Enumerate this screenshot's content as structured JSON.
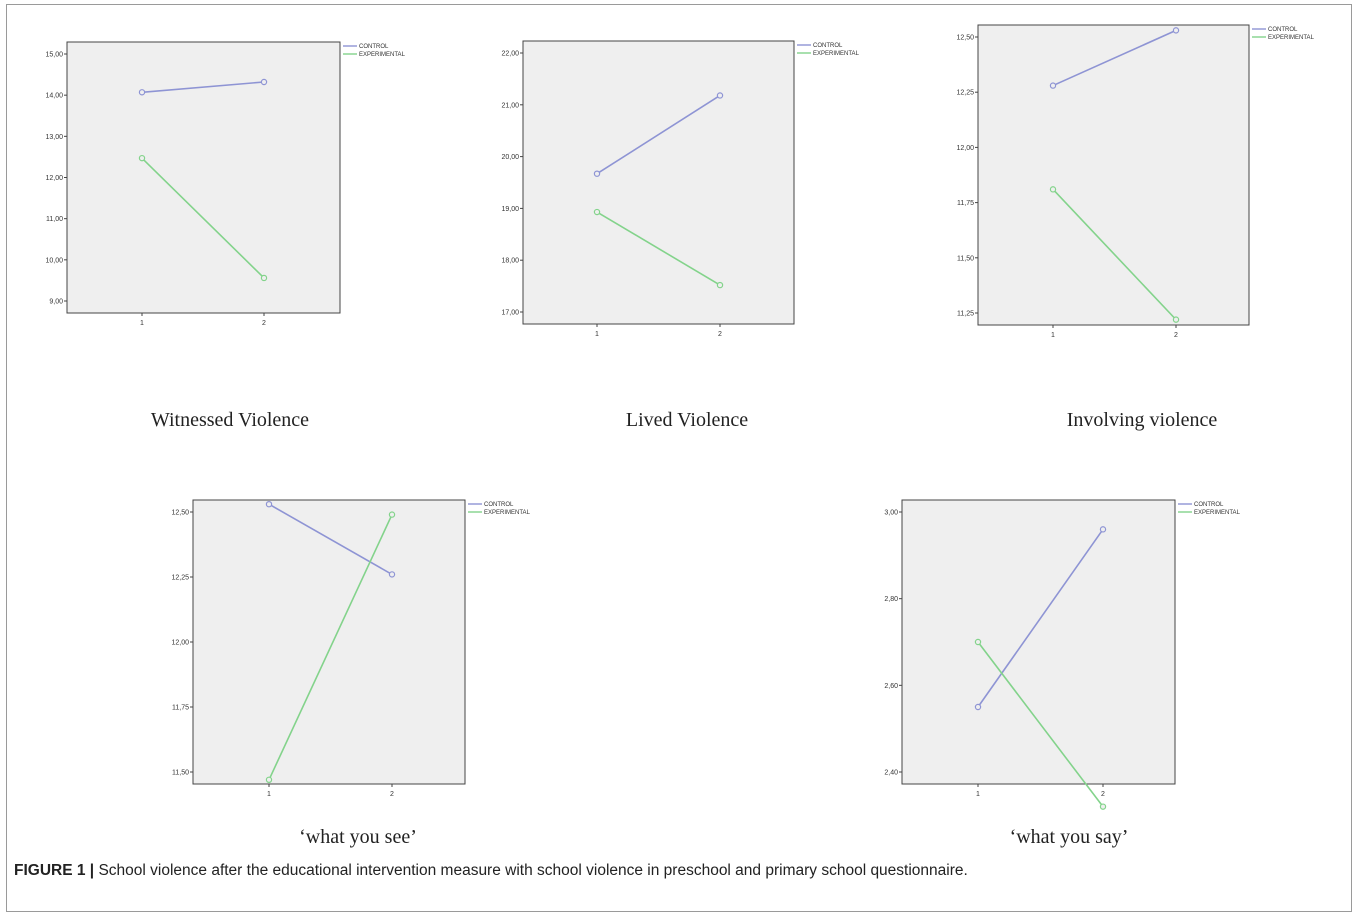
{
  "caption": {
    "label": "FIGURE 1 |",
    "text": "School violence after the educational intervention measure with school violence in preschool and primary school questionnaire."
  },
  "colors": {
    "control": "#8e94d4",
    "experimental": "#83d38b",
    "plot_bg": "#efefef"
  },
  "chart_data": [
    {
      "type": "line",
      "title": "Witnessed Violence",
      "categories": [
        "1",
        "2"
      ],
      "ylim": [
        9.0,
        15.0
      ],
      "yticks": [
        9.0,
        10.0,
        11.0,
        12.0,
        13.0,
        14.0,
        15.0
      ],
      "ytick_labels": [
        "9,00",
        "10,00",
        "11,00",
        "12,00",
        "13,00",
        "14,00",
        "15,00"
      ],
      "series": [
        {
          "name": "CONTROL",
          "values": [
            14.07,
            14.32
          ]
        },
        {
          "name": "EXPERIMENTAL",
          "values": [
            12.47,
            9.56
          ]
        }
      ]
    },
    {
      "type": "line",
      "title": "Lived Violence",
      "categories": [
        "1",
        "2"
      ],
      "ylim": [
        17.0,
        22.0
      ],
      "yticks": [
        17.0,
        18.0,
        19.0,
        20.0,
        21.0,
        22.0
      ],
      "ytick_labels": [
        "17,00",
        "18,00",
        "19,00",
        "20,00",
        "21,00",
        "22,00"
      ],
      "series": [
        {
          "name": "CONTROL",
          "values": [
            19.67,
            21.18
          ]
        },
        {
          "name": "EXPERIMENTAL",
          "values": [
            18.93,
            17.52
          ]
        }
      ]
    },
    {
      "type": "line",
      "title": "Involving violence",
      "categories": [
        "1",
        "2"
      ],
      "ylim": [
        11.25,
        12.5
      ],
      "yticks": [
        11.25,
        11.5,
        11.75,
        12.0,
        12.25,
        12.5
      ],
      "ytick_labels": [
        "11,25",
        "11,50",
        "11,75",
        "12,00",
        "12,25",
        "12,50"
      ],
      "series": [
        {
          "name": "CONTROL",
          "values": [
            12.28,
            12.53
          ]
        },
        {
          "name": "EXPERIMENTAL",
          "values": [
            11.81,
            11.22
          ]
        }
      ]
    },
    {
      "type": "line",
      "title": "‘what you see’",
      "categories": [
        "1",
        "2"
      ],
      "ylim": [
        11.5,
        12.5
      ],
      "yticks": [
        11.5,
        11.75,
        12.0,
        12.25,
        12.5
      ],
      "ytick_labels": [
        "11,50",
        "11,75",
        "12,00",
        "12,25",
        "12,50"
      ],
      "series": [
        {
          "name": "CONTROL",
          "values": [
            12.53,
            12.26
          ]
        },
        {
          "name": "EXPERIMENTAL",
          "values": [
            11.47,
            12.49
          ]
        }
      ]
    },
    {
      "type": "line",
      "title": "‘what you say’",
      "categories": [
        "1",
        "2"
      ],
      "ylim": [
        2.4,
        3.0
      ],
      "yticks": [
        2.4,
        2.6,
        2.8,
        3.0
      ],
      "ytick_labels": [
        "2,40",
        "2,60",
        "2,80",
        "3,00"
      ],
      "series": [
        {
          "name": "CONTROL",
          "values": [
            2.55,
            2.96
          ]
        },
        {
          "name": "EXPERIMENTAL",
          "values": [
            2.7,
            2.32
          ]
        }
      ]
    }
  ]
}
